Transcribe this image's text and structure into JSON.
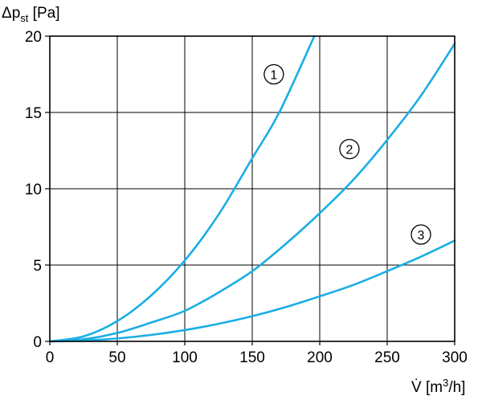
{
  "chart_data": {
    "type": "line",
    "title": "",
    "ylabel": {
      "main": "Δp",
      "sub": "st",
      "unit": " [Pa]"
    },
    "xlabel": {
      "main": "V̇",
      "unit": " [m",
      "sup": "3",
      "unit_end": "/h]"
    },
    "xlim": [
      0,
      300
    ],
    "ylim": [
      0,
      20
    ],
    "x_ticks": [
      0,
      50,
      100,
      150,
      200,
      250,
      300
    ],
    "y_ticks": [
      0,
      5,
      10,
      15,
      20
    ],
    "grid": true,
    "line_color": "#1aaee5",
    "series": [
      {
        "label": "1",
        "label_pos": [
          166,
          17.5
        ],
        "x": [
          0,
          25,
          50,
          75,
          100,
          125,
          150,
          170,
          196
        ],
        "y": [
          0,
          0.33,
          1.33,
          3.0,
          5.3,
          8.3,
          12.0,
          15.0,
          20.0
        ]
      },
      {
        "label": "2",
        "label_pos": [
          222,
          12.6
        ],
        "x": [
          0,
          25,
          50,
          75,
          100,
          125,
          150,
          175,
          200,
          225,
          250,
          275,
          300
        ],
        "y": [
          0,
          0.14,
          0.55,
          1.23,
          2.0,
          3.2,
          4.6,
          6.4,
          8.4,
          10.6,
          13.2,
          16.1,
          19.5
        ]
      },
      {
        "label": "3",
        "label_pos": [
          275,
          7.0
        ],
        "x": [
          0,
          25,
          50,
          75,
          100,
          125,
          150,
          175,
          200,
          225,
          250,
          275,
          300
        ],
        "y": [
          0,
          0.05,
          0.19,
          0.42,
          0.74,
          1.15,
          1.65,
          2.25,
          2.95,
          3.7,
          4.6,
          5.55,
          6.6
        ]
      }
    ]
  }
}
